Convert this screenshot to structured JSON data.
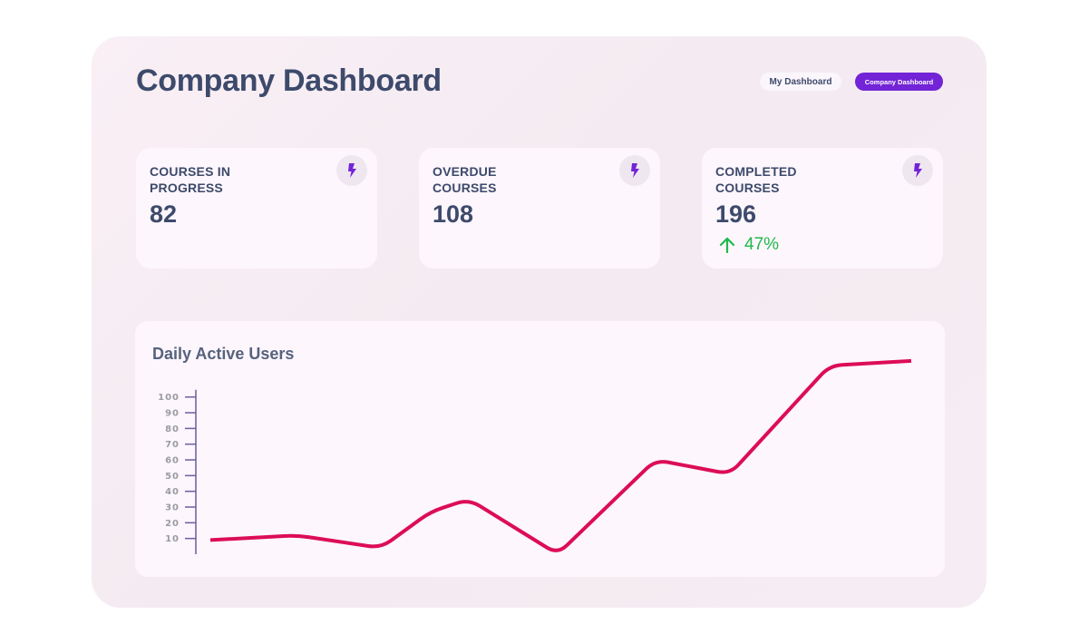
{
  "header": {
    "title": "Company Dashboard",
    "toggle": [
      {
        "label": "My Dashboard",
        "active": false
      },
      {
        "label": "Company Dashboard",
        "active": true
      }
    ]
  },
  "colors": {
    "accent": "#7224d6",
    "text": "#3d4a6b",
    "positive": "#1fb94b",
    "line": "#dc0d55"
  },
  "cards": [
    {
      "label": "COURSES IN PROGRESS",
      "value": "82",
      "icon": "lightning-icon"
    },
    {
      "label": "OVERDUE COURSES",
      "value": "108",
      "icon": "lightning-icon"
    },
    {
      "label": "COMPLETED COURSES",
      "value": "196",
      "icon": "lightning-icon",
      "trend": {
        "direction": "up",
        "value": "47%",
        "icon": "arrow-up-icon"
      }
    }
  ],
  "chart_data": {
    "type": "line",
    "title": "Daily Active Users",
    "xlabel": "",
    "ylabel": "",
    "x": [
      1,
      2,
      3,
      4,
      5,
      6,
      7,
      8,
      9,
      10
    ],
    "series": [
      {
        "name": "Daily Active Users",
        "values": [
          9,
          12,
          4,
          27,
          35,
          0,
          60,
          51,
          120,
          123
        ]
      }
    ],
    "yticks": [
      10,
      20,
      30,
      40,
      50,
      60,
      70,
      80,
      90,
      100
    ],
    "ylim": [
      0,
      100
    ],
    "grid": false,
    "legend": "none"
  }
}
